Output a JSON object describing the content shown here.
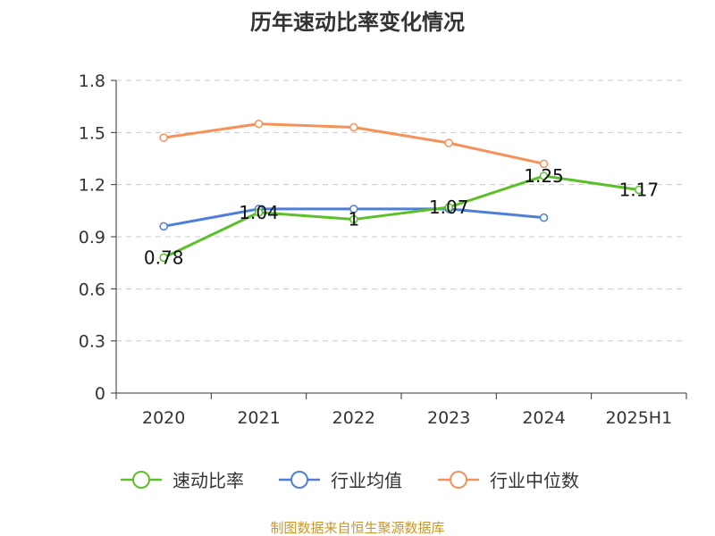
{
  "chart_data": {
    "type": "line",
    "title": "历年速动比率变化情况",
    "categories": [
      "2020",
      "2021",
      "2022",
      "2023",
      "2024",
      "2025H1"
    ],
    "ylim": [
      0,
      1.8
    ],
    "yticks": [
      "0",
      "0.3",
      "0.6",
      "0.9",
      "1.2",
      "1.5",
      "1.8"
    ],
    "grid": true,
    "legend_position": "bottom",
    "series": [
      {
        "name": "速动比率",
        "color": "#5cc02a",
        "values": [
          0.78,
          1.04,
          1.0,
          1.07,
          1.25,
          1.17
        ],
        "labels": [
          "0.78",
          "1.04",
          "1",
          "1.07",
          "1.25",
          "1.17"
        ]
      },
      {
        "name": "行业均值",
        "color": "#4e7fd8",
        "values": [
          0.96,
          1.06,
          1.06,
          1.06,
          1.01,
          null
        ],
        "labels": []
      },
      {
        "name": "行业中位数",
        "color": "#f59259",
        "values": [
          1.47,
          1.55,
          1.53,
          1.44,
          1.32,
          null
        ],
        "labels": []
      }
    ]
  },
  "footer": {
    "source": "制图数据来自恒生聚源数据库"
  }
}
